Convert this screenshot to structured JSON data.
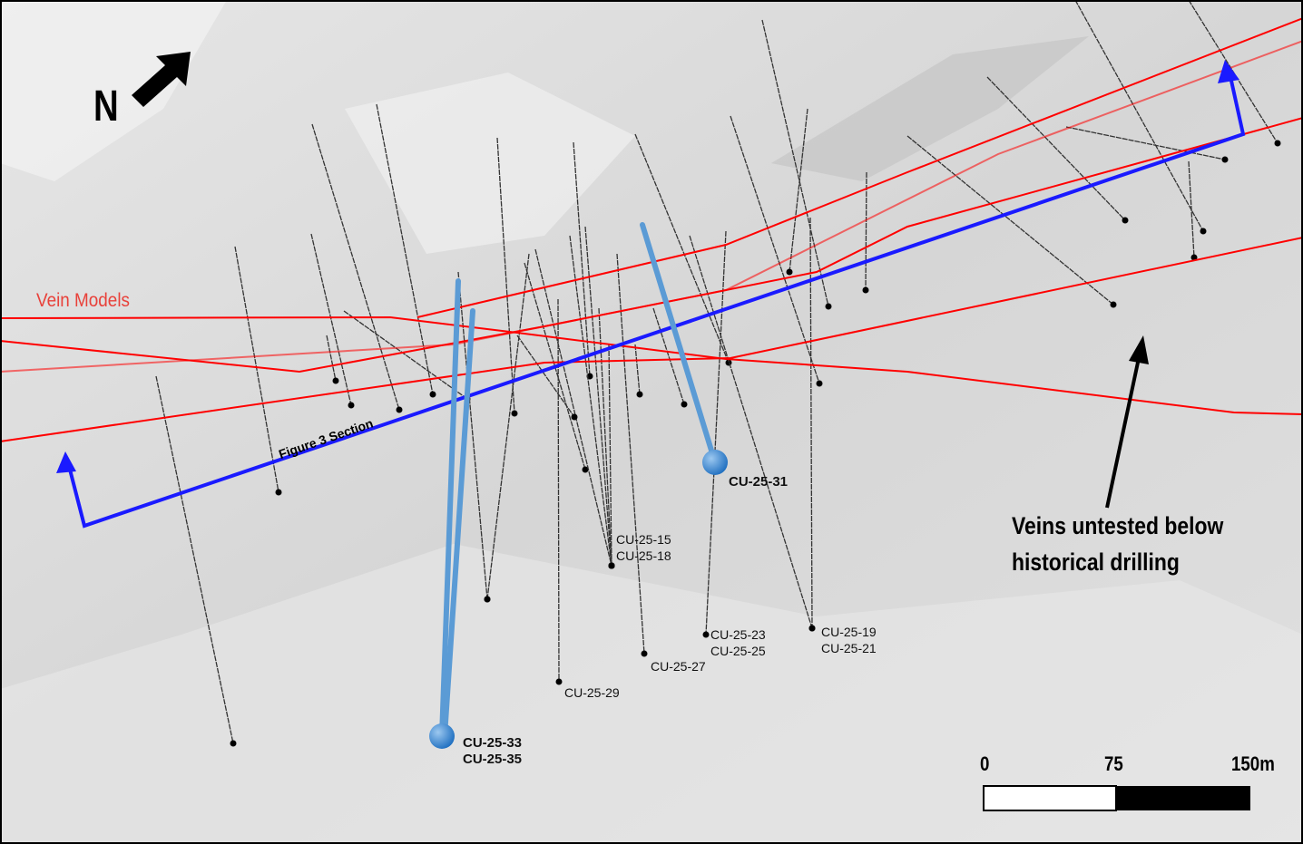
{
  "map": {
    "north_label": "N",
    "vein_label": "Vein Models",
    "section_label": "Figure 3 Section",
    "annotation": "Veins untested below\nhistorical drilling",
    "colors": {
      "terrain": "#d9d9d9",
      "vein": "#ff0000",
      "section": "#1a1aff",
      "new_drill": "#5b9bd5",
      "historic_drill": "#333333"
    },
    "highlighted_holes": [
      {
        "label": "CU-25-31"
      },
      {
        "label": "CU-25-33\nCU-25-35"
      }
    ],
    "hole_labels": [
      "CU-25-15\nCU-25-18",
      "CU-25-23\nCU-25-25",
      "CU-25-19\nCU-25-21",
      "CU-25-27",
      "CU-25-29"
    ],
    "scale_bar": {
      "ticks": [
        "0",
        "75",
        "150m"
      ]
    }
  }
}
